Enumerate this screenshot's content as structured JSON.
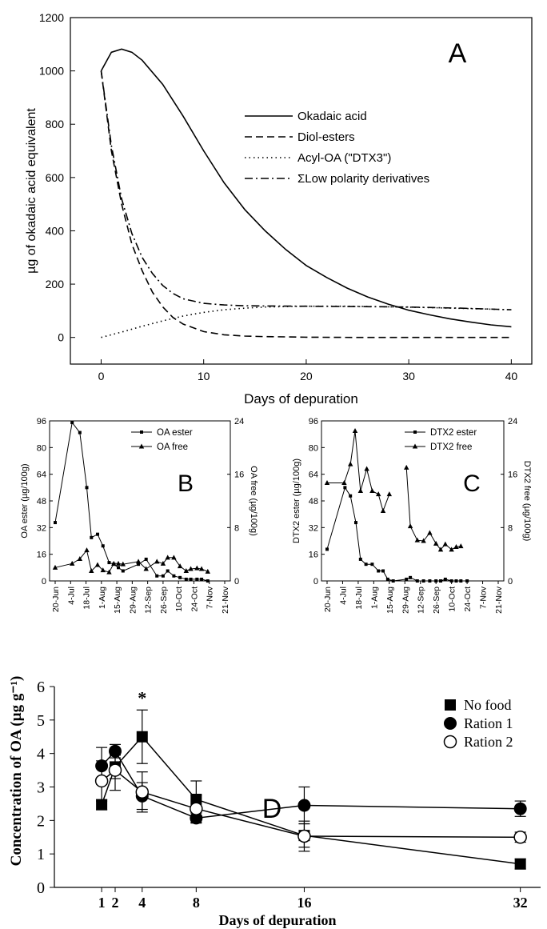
{
  "chart_data": [
    {
      "id": "A",
      "type": "line",
      "panel_label": "A",
      "xlabel": "Days of depuration",
      "ylabel": "µg of okadaic acid equivalent",
      "xlim": [
        -3,
        42
      ],
      "ylim": [
        -100,
        1200
      ],
      "xticks": [
        0,
        10,
        20,
        30,
        40
      ],
      "yticks": [
        0,
        200,
        400,
        600,
        800,
        1000,
        1200
      ],
      "legend_position": "upper-right",
      "series": [
        {
          "name": "Okadaic acid",
          "style": "solid",
          "x": [
            0,
            1,
            2,
            3,
            4,
            6,
            8,
            10,
            12,
            14,
            16,
            18,
            20,
            22,
            24,
            26,
            28,
            30,
            32,
            34,
            36,
            38,
            40
          ],
          "y": [
            1000,
            1070,
            1082,
            1070,
            1040,
            950,
            830,
            700,
            580,
            480,
            400,
            330,
            270,
            225,
            185,
            152,
            125,
            102,
            85,
            70,
            58,
            47,
            40
          ]
        },
        {
          "name": "Diol-esters",
          "style": "dashed",
          "x": [
            0,
            1,
            2,
            3,
            4,
            5,
            6,
            7,
            8,
            10,
            12,
            14,
            16,
            18,
            20,
            25,
            30,
            35,
            40
          ],
          "y": [
            1000,
            700,
            500,
            350,
            250,
            170,
            115,
            75,
            50,
            22,
            10,
            5,
            3,
            2,
            1,
            0,
            0,
            0,
            0
          ]
        },
        {
          "name": "Acyl-OA (\"DTX3\")",
          "style": "dotted",
          "x": [
            0,
            2,
            4,
            6,
            8,
            10,
            12,
            14,
            16,
            18,
            20,
            24,
            28,
            32,
            36,
            40
          ],
          "y": [
            0,
            20,
            42,
            62,
            80,
            94,
            104,
            110,
            114,
            116,
            117,
            117,
            115,
            112,
            108,
            104
          ]
        },
        {
          "name": "ΣLow polarity derivatives",
          "style": "dashdot",
          "x": [
            0,
            1,
            2,
            3,
            4,
            5,
            6,
            7,
            8,
            10,
            12,
            14,
            16,
            20,
            25,
            30,
            35,
            40
          ],
          "y": [
            1000,
            720,
            520,
            390,
            300,
            240,
            195,
            165,
            145,
            128,
            122,
            119,
            118,
            117,
            116,
            114,
            110,
            104
          ]
        }
      ]
    },
    {
      "id": "B",
      "type": "line",
      "panel_label": "B",
      "ylabel": "OA ester (µg/100g)",
      "y2label": "OA free (µg/100g)",
      "ylim": [
        0,
        96
      ],
      "y2lim": [
        0,
        24
      ],
      "yticks": [
        0,
        16,
        32,
        48,
        64,
        80,
        96
      ],
      "y2ticks": [
        0,
        8,
        16,
        24
      ],
      "categories": [
        "20-Jun",
        "4-Jul",
        "18-Jul",
        "1-Aug",
        "15-Aug",
        "29-Aug",
        "12-Sep",
        "26-Sep",
        "10-Oct",
        "24-Oct",
        "7-Nov",
        "21-Nov"
      ],
      "legend_position": "upper-right",
      "series": [
        {
          "name": "OA ester",
          "marker": "square",
          "axis": "left",
          "x": [
            0,
            1.1,
            1.6,
            2.05,
            2.35,
            2.75,
            3.1,
            3.5,
            3.8,
            4.1,
            4.4,
            5.4,
            5.9,
            6.6,
            7.0,
            7.3,
            7.7,
            8.1,
            8.5,
            8.8,
            9.2,
            9.5,
            9.9
          ],
          "y": [
            35,
            95,
            89,
            56,
            26,
            28,
            21,
            11,
            10,
            8,
            6,
            10,
            13,
            3,
            3,
            6,
            3,
            2,
            1,
            1,
            1,
            1,
            0
          ]
        },
        {
          "name": "OA free",
          "marker": "triangle",
          "axis": "right",
          "x": [
            0,
            1.1,
            1.6,
            2.05,
            2.35,
            2.75,
            3.1,
            3.5,
            3.8,
            4.1,
            4.4,
            5.4,
            5.9,
            6.6,
            7.0,
            7.3,
            7.7,
            8.1,
            8.5,
            8.8,
            9.2,
            9.5,
            9.9
          ],
          "y": [
            2,
            2.6,
            3.3,
            4.6,
            1.5,
            2.4,
            1.6,
            1.3,
            2.6,
            2.6,
            2.5,
            2.9,
            1.8,
            2.9,
            2.6,
            3.5,
            3.5,
            2.2,
            1.5,
            1.8,
            1.9,
            1.8,
            1.4
          ]
        }
      ]
    },
    {
      "id": "C",
      "type": "line",
      "panel_label": "C",
      "ylabel": "DTX2 ester (µg/100g)",
      "y2label": "DTX2 free (µg/100g)",
      "ylim": [
        0,
        96
      ],
      "y2lim": [
        0,
        24
      ],
      "yticks": [
        0,
        16,
        32,
        48,
        64,
        80,
        96
      ],
      "y2ticks": [
        0,
        8,
        16,
        24
      ],
      "categories": [
        "20-Jun",
        "4-Jul",
        "18-Jul",
        "1-Aug",
        "15-Aug",
        "29-Aug",
        "12-Sep",
        "26-Sep",
        "10-Oct",
        "24-Oct",
        "7-Nov",
        "21-Nov"
      ],
      "legend_position": "upper-right",
      "series": [
        {
          "name": "DTX2 ester",
          "marker": "square",
          "axis": "left",
          "x": [
            0,
            1.15,
            1.5,
            1.85,
            2.15,
            2.5,
            2.9,
            3.3,
            3.6,
            3.9,
            4.25,
            5.1,
            5.35,
            5.8,
            6.2,
            6.6,
            7.0,
            7.3,
            7.6,
            8.0,
            8.3,
            8.6,
            9.0
          ],
          "y": [
            19,
            56,
            51,
            35,
            13,
            10,
            10,
            6,
            6,
            1,
            0,
            1,
            2,
            0,
            0,
            0,
            0,
            0,
            1,
            0,
            0,
            0,
            0
          ]
        },
        {
          "name": "DTX2 free",
          "marker": "triangle",
          "axis": "right",
          "x": [
            0,
            1.1,
            1.5,
            1.8,
            2.15,
            2.55,
            2.9,
            3.3,
            3.6,
            4.0,
            4.3,
            5.1,
            5.35,
            5.8,
            6.2,
            6.6,
            7.0,
            7.3,
            7.6,
            8.0,
            8.3,
            8.6,
            9.0
          ],
          "y": [
            14.7,
            14.7,
            17.5,
            22.5,
            13.5,
            16.8,
            13.5,
            13,
            10.5,
            13,
            0,
            17,
            8.2,
            6.1,
            6,
            7.2,
            5.6,
            4.7,
            5.5,
            4.7,
            5.1,
            5.2,
            0
          ]
        }
      ]
    },
    {
      "id": "D",
      "type": "line",
      "panel_label": "D",
      "xlabel": "Days of depuration",
      "ylabel": "Concentration of OA (µg g⁻¹)",
      "xlim": [
        -2.5,
        33.5
      ],
      "ylim": [
        0,
        6
      ],
      "xticks": [
        1,
        2,
        4,
        8,
        16,
        32
      ],
      "yticks": [
        0,
        1,
        2,
        3,
        4,
        5,
        6
      ],
      "annotation": "*",
      "legend_position": "upper-right",
      "series": [
        {
          "name": "No food",
          "marker": "filled-square",
          "x": [
            1,
            2,
            4,
            8,
            16,
            32
          ],
          "y": [
            2.47,
            3.6,
            4.5,
            2.63,
            1.55,
            0.7
          ],
          "err": [
            0.15,
            0.35,
            0.8,
            0.55,
            0.35,
            0.15
          ]
        },
        {
          "name": "Ration 1",
          "marker": "filled-circle",
          "x": [
            1,
            2,
            4,
            8,
            16,
            32
          ],
          "y": [
            3.63,
            4.07,
            2.73,
            2.07,
            2.45,
            2.35
          ],
          "err": [
            0.55,
            0.2,
            0.4,
            0.15,
            0.55,
            0.23
          ]
        },
        {
          "name": "Ration 2",
          "marker": "open-circle",
          "x": [
            1,
            2,
            4,
            8,
            16,
            32
          ],
          "y": [
            3.18,
            3.5,
            2.85,
            2.35,
            1.53,
            1.5
          ],
          "err": [
            0.6,
            0.6,
            0.6,
            0.4,
            0.45,
            0.15
          ]
        }
      ]
    }
  ]
}
